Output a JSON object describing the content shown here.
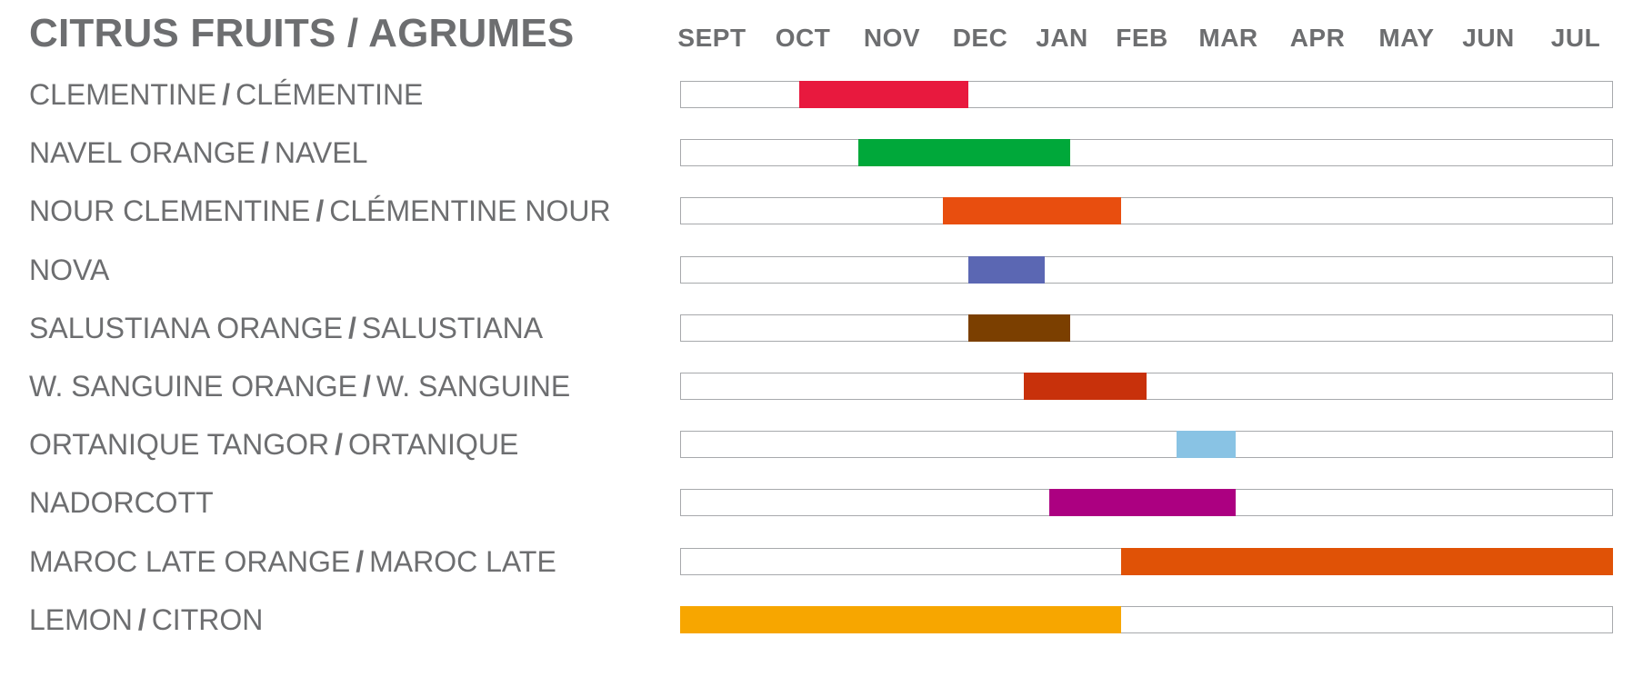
{
  "chart_data": {
    "type": "bar",
    "orientation": "horizontal",
    "subtype": "gantt",
    "title": "CITRUS FRUITS / AGRUMES",
    "months": [
      "SEPT",
      "OCT",
      "NOV",
      "DEC",
      "JAN",
      "FEB",
      "MAR",
      "APR",
      "MAY",
      "JUN",
      "JUL"
    ],
    "xlim": [
      0,
      11
    ],
    "series": [
      {
        "label_en": "CLEMENTINE",
        "label_fr": "CLÉMENTINE",
        "start": 1.4,
        "end": 3.4,
        "color": "#e8193e"
      },
      {
        "label_en": "NAVEL ORANGE",
        "label_fr": "NAVEL",
        "start": 2.1,
        "end": 4.6,
        "color": "#00a83a"
      },
      {
        "label_en": "NOUR CLEMENTINE",
        "label_fr": "CLÉMENTINE NOUR",
        "start": 3.1,
        "end": 5.2,
        "color": "#e84e0f"
      },
      {
        "label_en": "NOVA",
        "label_fr": "",
        "start": 3.4,
        "end": 4.3,
        "color": "#5b67b3"
      },
      {
        "label_en": "SALUSTIANA ORANGE",
        "label_fr": "SALUSTIANA",
        "start": 3.4,
        "end": 4.6,
        "color": "#7b3f00"
      },
      {
        "label_en": "W. SANGUINE ORANGE",
        "label_fr": "W. SANGUINE",
        "start": 4.05,
        "end": 5.5,
        "color": "#c8310b"
      },
      {
        "label_en": "ORTANIQUE TANGOR",
        "label_fr": "ORTANIQUE",
        "start": 5.85,
        "end": 6.55,
        "color": "#89c3e4"
      },
      {
        "label_en": "NADORCOTT",
        "label_fr": "",
        "start": 4.35,
        "end": 6.55,
        "color": "#ac0081"
      },
      {
        "label_en": "MAROC LATE ORANGE",
        "label_fr": "MAROC LATE",
        "start": 5.2,
        "end": 11,
        "color": "#e05206"
      },
      {
        "label_en": "LEMON",
        "label_fr": "CITRON",
        "start": 0,
        "end": 5.2,
        "color": "#f7a600"
      }
    ]
  }
}
